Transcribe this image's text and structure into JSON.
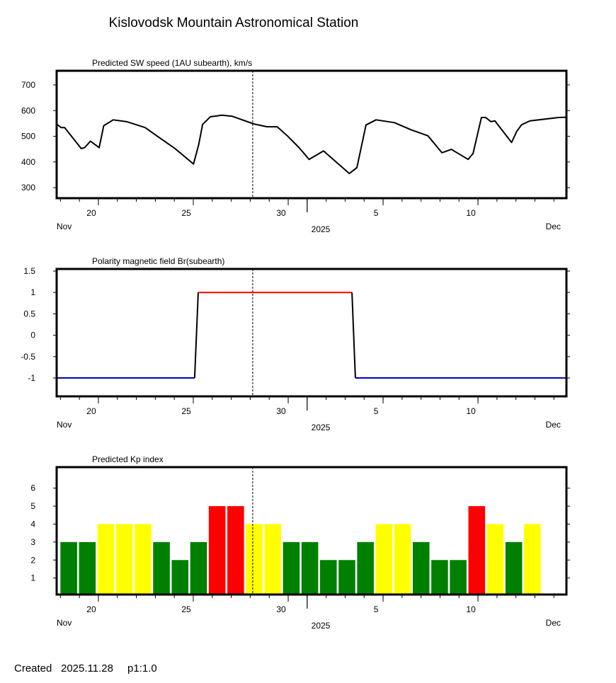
{
  "title": "Kislovodsk Mountain Astronomical Station",
  "footer": {
    "created_label": "Created",
    "created_date": "2025.11.28",
    "page": "p1:1.0"
  },
  "x_axis": {
    "unit": "day-of-November (Dec d = 30+d)",
    "range": [
      17.8,
      44.66
    ],
    "current_time": 28.13,
    "tick_labels": [
      {
        "day": 20,
        "label": "20"
      },
      {
        "day": 25,
        "label": "25"
      },
      {
        "day": 30,
        "label": "30"
      },
      {
        "day": 35,
        "label": "5"
      },
      {
        "day": 40,
        "label": "10"
      }
    ],
    "month_left": "Nov",
    "month_right": "Dec",
    "year": "2025",
    "month_boundary": 31
  },
  "colors": {
    "line": "#000000",
    "pol_pos": "#ff0000",
    "pol_neg": "#0000cc",
    "kp_low": "#008000",
    "kp_mid": "#ffff00",
    "kp_high": "#ff0000"
  },
  "chart_data": [
    {
      "type": "line",
      "title": "Predicted SW speed (1AU subearth), km/s",
      "ylabel": "km/s",
      "ylim": [
        259,
        755
      ],
      "yticks": [
        300,
        400,
        500,
        600,
        700
      ],
      "x": [
        17.78,
        18.04,
        18.22,
        19.1,
        19.28,
        19.58,
        20.04,
        20.28,
        20.78,
        21.48,
        22.46,
        23.07,
        24.04,
        25.01,
        25.28,
        25.49,
        25.9,
        26.51,
        27.04,
        28.19,
        28.89,
        29.42,
        29.95,
        30.57,
        31.1,
        31.86,
        33.22,
        33.62,
        34.1,
        34.63,
        35.6,
        36.48,
        37.36,
        38.1,
        38.6,
        39.48,
        39.74,
        40.18,
        40.41,
        40.68,
        40.89,
        41.77,
        42.04,
        42.3,
        42.74,
        44.24,
        44.66
      ],
      "y": [
        548,
        534,
        534,
        452,
        456,
        481,
        456,
        541,
        564,
        557,
        534,
        502,
        452,
        392,
        466,
        546,
        576,
        582,
        578,
        548,
        537,
        537,
        502,
        456,
        410,
        443,
        355,
        378,
        544,
        564,
        553,
        525,
        502,
        436,
        449,
        410,
        433,
        573,
        573,
        557,
        560,
        476,
        519,
        545,
        560,
        573,
        574
      ]
    },
    {
      "type": "line",
      "title": "Polarity magnetic field  Br(subearth)",
      "ylim": [
        -1.43,
        1.55
      ],
      "yticks": [
        -1,
        -0.5,
        0,
        0.5,
        1,
        1.5
      ],
      "ytick_labels": [
        "-1",
        "-0.5",
        "0",
        "0.5",
        "1",
        "1.5"
      ],
      "segments": [
        {
          "x": [
            17.8,
            25.07
          ],
          "y": [
            -1,
            -1
          ],
          "color": "pol_neg"
        },
        {
          "x": [
            25.07,
            25.26
          ],
          "y": [
            -1,
            1
          ],
          "color": "line"
        },
        {
          "x": [
            25.26,
            33.36
          ],
          "y": [
            1,
            1
          ],
          "color": "pol_pos"
        },
        {
          "x": [
            33.36,
            33.54
          ],
          "y": [
            1,
            -1
          ],
          "color": "line"
        },
        {
          "x": [
            33.54,
            44.66
          ],
          "y": [
            -1,
            -1
          ],
          "color": "pol_neg"
        }
      ]
    },
    {
      "type": "bar",
      "title": "Predicted Kp index",
      "ylim": [
        0.08,
        7.17
      ],
      "yticks": [
        1,
        2,
        3,
        4,
        5,
        6
      ],
      "start_day": 18,
      "values": [
        3,
        3,
        4,
        4,
        4,
        3,
        2,
        3,
        5,
        5,
        4,
        4,
        3,
        3,
        2,
        2,
        3,
        4,
        4,
        3,
        2,
        2,
        5,
        4,
        3,
        4
      ]
    }
  ]
}
